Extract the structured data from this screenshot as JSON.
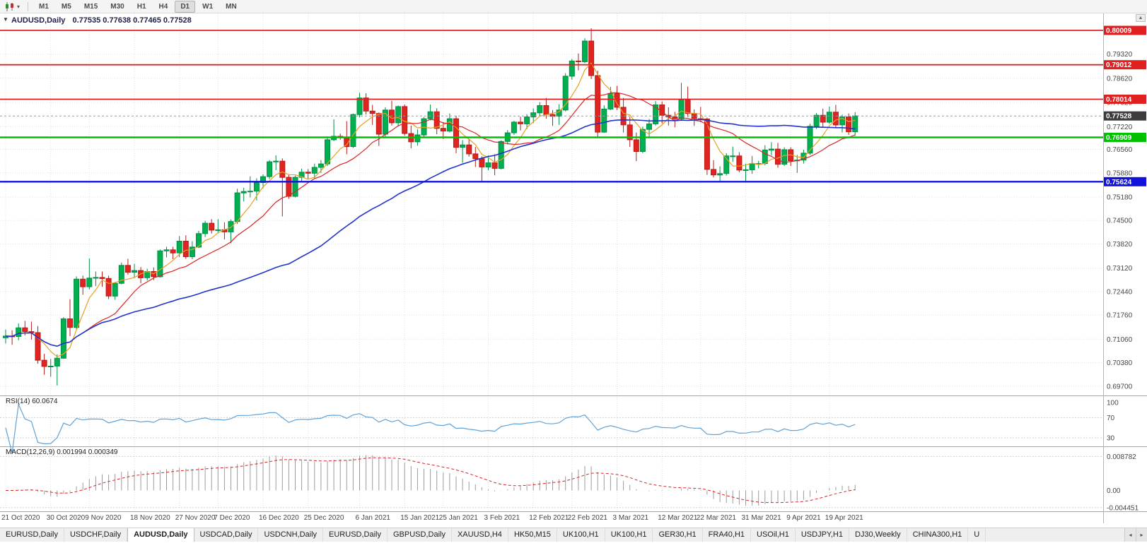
{
  "toolbar": {
    "timeframes": [
      "M1",
      "M5",
      "M15",
      "M30",
      "H1",
      "H4",
      "D1",
      "W1",
      "MN"
    ],
    "active": "D1"
  },
  "icons": {
    "one_click": "▼",
    "chevron_down": "▾",
    "scroll_up": "▲",
    "arrow_left": "◂",
    "arrow_right": "▸"
  },
  "chart": {
    "title": {
      "symbol": "AUDUSD,Daily",
      "ohlc": "0.77535 0.77638 0.77465 0.77528"
    },
    "colors": {
      "up": "#00b050",
      "up_stroke": "#008f43",
      "down": "#e0241f",
      "down_stroke": "#b51d19",
      "grid": "#e0e0e0",
      "axis_text": "#464646",
      "separator": "#a6a6a6",
      "axis_border": "#b4b4b4",
      "rsi_line": "#5fa2d8",
      "macd_hist": "#9b9b9b",
      "macd_signal": "#dc2020",
      "current_line": "#9a9a9a"
    }
  },
  "rsi": {
    "title": "RSI(14) 60.0674",
    "period": 14,
    "current": 60.0674,
    "axis_labels": [
      100,
      70,
      30
    ]
  },
  "macd": {
    "title": "MACD(12,26,9) 0.001994 0.000349",
    "fast": 12,
    "slow": 26,
    "signal": 9,
    "macd_value": 0.001994,
    "signal_value": 0.000349,
    "axis_labels": [
      "0.008782",
      "0.00",
      "-0.004451"
    ],
    "level_values": [
      0.008782,
      -0.004451
    ]
  },
  "tabs": {
    "items": [
      "EURUSD,Daily",
      "USDCHF,Daily",
      "AUDUSD,Daily",
      "USDCAD,Daily",
      "USDCNH,Daily",
      "EURUSD,Daily",
      "GBPUSD,Daily",
      "XAUUSD,H4",
      "HK50,M15",
      "UK100,H1",
      "UK100,H1",
      "GER30,H1",
      "FRA40,H1",
      "USOil,H1",
      "USDJPY,H1",
      "DJ30,Weekly",
      "CHINA300,H1",
      "U"
    ],
    "active_index": 2
  },
  "chart_data": {
    "type": "candlestick",
    "symbol": "AUDUSD",
    "period": "Daily",
    "ohlc_display": {
      "open": 0.77535,
      "high": 0.77638,
      "low": 0.77465,
      "close": 0.77528
    },
    "current_price": {
      "price": 0.77528,
      "label": "0.77528",
      "color": "#3c3c3c"
    },
    "y_axis_ticks": [
      0.7932,
      0.7862,
      0.7792,
      0.7722,
      0.7656,
      0.7588,
      0.7518,
      0.745,
      0.7382,
      0.7312,
      0.7244,
      0.7176,
      0.7106,
      0.7038,
      0.697
    ],
    "x_axis_labels": [
      {
        "label": "21 Oct 2020",
        "bar": 0
      },
      {
        "label": "30 Oct 2020",
        "bar": 7
      },
      {
        "label": "9 Nov 2020",
        "bar": 13
      },
      {
        "label": "18 Nov 2020",
        "bar": 20
      },
      {
        "label": "27 Nov 2020",
        "bar": 27
      },
      {
        "label": "7 Dec 2020",
        "bar": 33
      },
      {
        "label": "16 Dec 2020",
        "bar": 40
      },
      {
        "label": "25 Dec 2020",
        "bar": 47
      },
      {
        "label": "6 Jan 2021",
        "bar": 55
      },
      {
        "label": "15 Jan 2021",
        "bar": 62
      },
      {
        "label": "25 Jan 2021",
        "bar": 68
      },
      {
        "label": "3 Feb 2021",
        "bar": 75
      },
      {
        "label": "12 Feb 2021",
        "bar": 82
      },
      {
        "label": "22 Feb 2021",
        "bar": 88
      },
      {
        "label": "3 Mar 2021",
        "bar": 95
      },
      {
        "label": "12 Mar 2021",
        "bar": 102
      },
      {
        "label": "22 Mar 2021",
        "bar": 108
      },
      {
        "label": "31 Mar 2021",
        "bar": 115
      },
      {
        "label": "9 Apr 2021",
        "bar": 122
      },
      {
        "label": "19 Apr 2021",
        "bar": 128
      }
    ],
    "horizontal_levels": [
      {
        "price": 0.80009,
        "label": "0.80009",
        "color": "#e02020",
        "width": 1.8,
        "kind": "resistance"
      },
      {
        "price": 0.79012,
        "label": "0.79012",
        "color": "#e02020",
        "width": 1.8,
        "kind": "resistance"
      },
      {
        "price": 0.78014,
        "label": "0.78014",
        "color": "#e02020",
        "width": 1.8,
        "kind": "resistance"
      },
      {
        "price": 0.76909,
        "label": "0.76909",
        "color": "#00c000",
        "width": 2.4,
        "kind": "support"
      },
      {
        "price": 0.75624,
        "label": "0.75624",
        "color": "#1212dd",
        "width": 2.4,
        "kind": "support"
      }
    ],
    "moving_averages": [
      {
        "period": 5,
        "color": "#e8a020",
        "name": "ma-fast"
      },
      {
        "period": 13,
        "color": "#dd2222",
        "name": "ma-mid"
      },
      {
        "period": 45,
        "color": "#2233cc",
        "name": "ma-slow"
      }
    ],
    "candles": [
      [
        0.711,
        0.7134,
        0.7094,
        0.7115
      ],
      [
        0.7115,
        0.7132,
        0.709,
        0.7114
      ],
      [
        0.7114,
        0.7152,
        0.7103,
        0.7139
      ],
      [
        0.7139,
        0.7159,
        0.7117,
        0.7128
      ],
      [
        0.7128,
        0.7157,
        0.7105,
        0.7125
      ],
      [
        0.7125,
        0.7144,
        0.7035,
        0.7045
      ],
      [
        0.7045,
        0.7064,
        0.7003,
        0.7027
      ],
      [
        0.7027,
        0.7049,
        0.6997,
        0.7028
      ],
      [
        0.7028,
        0.7062,
        0.6972,
        0.7051
      ],
      [
        0.7051,
        0.717,
        0.7049,
        0.7165
      ],
      [
        0.7165,
        0.7222,
        0.7115,
        0.714
      ],
      [
        0.714,
        0.7288,
        0.7135,
        0.728
      ],
      [
        0.728,
        0.729,
        0.7235,
        0.7258
      ],
      [
        0.7258,
        0.734,
        0.725,
        0.7283
      ],
      [
        0.7283,
        0.7302,
        0.726,
        0.7285
      ],
      [
        0.7285,
        0.7302,
        0.7258,
        0.7282
      ],
      [
        0.7282,
        0.729,
        0.7222,
        0.7231
      ],
      [
        0.7231,
        0.7272,
        0.722,
        0.7268
      ],
      [
        0.7268,
        0.7328,
        0.7265,
        0.732
      ],
      [
        0.732,
        0.7339,
        0.7293,
        0.73
      ],
      [
        0.73,
        0.7324,
        0.7283,
        0.7305
      ],
      [
        0.7305,
        0.7315,
        0.7268,
        0.7284
      ],
      [
        0.7284,
        0.731,
        0.7276,
        0.7302
      ],
      [
        0.7302,
        0.7314,
        0.7277,
        0.7287
      ],
      [
        0.7287,
        0.7366,
        0.7285,
        0.7362
      ],
      [
        0.7362,
        0.7374,
        0.7343,
        0.7365
      ],
      [
        0.7365,
        0.7374,
        0.7338,
        0.7356
      ],
      [
        0.7356,
        0.7405,
        0.7344,
        0.739
      ],
      [
        0.739,
        0.7407,
        0.7339,
        0.7345
      ],
      [
        0.7345,
        0.739,
        0.7338,
        0.7373
      ],
      [
        0.7373,
        0.742,
        0.737,
        0.7412
      ],
      [
        0.7412,
        0.7449,
        0.7402,
        0.7442
      ],
      [
        0.7442,
        0.7454,
        0.7412,
        0.7422
      ],
      [
        0.7422,
        0.7454,
        0.7413,
        0.7423
      ],
      [
        0.7423,
        0.7445,
        0.7395,
        0.7417
      ],
      [
        0.7417,
        0.7453,
        0.7384,
        0.7447
      ],
      [
        0.7447,
        0.7542,
        0.744,
        0.753
      ],
      [
        0.753,
        0.7545,
        0.7505,
        0.7534
      ],
      [
        0.7534,
        0.7578,
        0.7517,
        0.7535
      ],
      [
        0.7535,
        0.7572,
        0.7508,
        0.756
      ],
      [
        0.756,
        0.7584,
        0.7543,
        0.7577
      ],
      [
        0.7577,
        0.7625,
        0.757,
        0.762
      ],
      [
        0.762,
        0.7639,
        0.7596,
        0.7622
      ],
      [
        0.7622,
        0.763,
        0.7462,
        0.7575
      ],
      [
        0.7575,
        0.7583,
        0.7513,
        0.752
      ],
      [
        0.752,
        0.758,
        0.7517,
        0.7575
      ],
      [
        0.7575,
        0.76,
        0.756,
        0.759
      ],
      [
        0.759,
        0.7599,
        0.757,
        0.7587
      ],
      [
        0.7587,
        0.7615,
        0.7572,
        0.7604
      ],
      [
        0.7604,
        0.7625,
        0.7588,
        0.7614
      ],
      [
        0.7614,
        0.769,
        0.7608,
        0.7684
      ],
      [
        0.7684,
        0.7743,
        0.768,
        0.7694
      ],
      [
        0.7694,
        0.7702,
        0.7684,
        0.7692
      ],
      [
        0.7692,
        0.7738,
        0.7642,
        0.7664
      ],
      [
        0.7664,
        0.776,
        0.766,
        0.7757
      ],
      [
        0.7757,
        0.782,
        0.7749,
        0.7805
      ],
      [
        0.7805,
        0.7819,
        0.7757,
        0.7767
      ],
      [
        0.7767,
        0.7785,
        0.7727,
        0.776
      ],
      [
        0.776,
        0.7763,
        0.7666,
        0.77
      ],
      [
        0.77,
        0.7778,
        0.7692,
        0.777
      ],
      [
        0.777,
        0.7797,
        0.7725,
        0.7733
      ],
      [
        0.7733,
        0.7783,
        0.7723,
        0.778
      ],
      [
        0.778,
        0.7786,
        0.7696,
        0.7702
      ],
      [
        0.7702,
        0.7725,
        0.7659,
        0.7678
      ],
      [
        0.7678,
        0.7714,
        0.7667,
        0.7698
      ],
      [
        0.7698,
        0.775,
        0.769,
        0.7745
      ],
      [
        0.7745,
        0.7786,
        0.774,
        0.7765
      ],
      [
        0.7765,
        0.7775,
        0.77,
        0.7717
      ],
      [
        0.7717,
        0.7735,
        0.7686,
        0.7709
      ],
      [
        0.7709,
        0.776,
        0.7705,
        0.7745
      ],
      [
        0.7745,
        0.7754,
        0.7645,
        0.7662
      ],
      [
        0.7662,
        0.7683,
        0.7617,
        0.7669
      ],
      [
        0.7669,
        0.7686,
        0.7635,
        0.7643
      ],
      [
        0.7643,
        0.7663,
        0.7605,
        0.7629
      ],
      [
        0.7629,
        0.7636,
        0.7563,
        0.7605
      ],
      [
        0.7605,
        0.7639,
        0.7596,
        0.7617
      ],
      [
        0.7617,
        0.7642,
        0.7581,
        0.7601
      ],
      [
        0.7601,
        0.7682,
        0.7598,
        0.7679
      ],
      [
        0.7679,
        0.7712,
        0.767,
        0.7704
      ],
      [
        0.7704,
        0.7739,
        0.7698,
        0.7735
      ],
      [
        0.7735,
        0.7751,
        0.7711,
        0.773
      ],
      [
        0.773,
        0.7758,
        0.7715,
        0.775
      ],
      [
        0.775,
        0.7775,
        0.7732,
        0.7762
      ],
      [
        0.7762,
        0.7793,
        0.7752,
        0.7783
      ],
      [
        0.7783,
        0.7805,
        0.7745,
        0.7757
      ],
      [
        0.7757,
        0.777,
        0.7724,
        0.7752
      ],
      [
        0.7752,
        0.7787,
        0.7727,
        0.777
      ],
      [
        0.777,
        0.7877,
        0.7766,
        0.7868
      ],
      [
        0.7868,
        0.7918,
        0.7858,
        0.7912
      ],
      [
        0.7912,
        0.7934,
        0.7885,
        0.791
      ],
      [
        0.791,
        0.7978,
        0.7906,
        0.797
      ],
      [
        0.797,
        0.8007,
        0.786,
        0.787
      ],
      [
        0.787,
        0.7884,
        0.7692,
        0.7706
      ],
      [
        0.7706,
        0.7784,
        0.7704,
        0.7773
      ],
      [
        0.7773,
        0.7837,
        0.777,
        0.7818
      ],
      [
        0.7818,
        0.784,
        0.777,
        0.7778
      ],
      [
        0.7778,
        0.7805,
        0.7705,
        0.7727
      ],
      [
        0.7727,
        0.775,
        0.7663,
        0.7684
      ],
      [
        0.7684,
        0.7705,
        0.7622,
        0.765
      ],
      [
        0.765,
        0.7722,
        0.7645,
        0.7714
      ],
      [
        0.7714,
        0.7744,
        0.7693,
        0.773
      ],
      [
        0.773,
        0.7796,
        0.7725,
        0.7785
      ],
      [
        0.7785,
        0.7795,
        0.7731,
        0.7755
      ],
      [
        0.7755,
        0.7778,
        0.7725,
        0.775
      ],
      [
        0.775,
        0.7765,
        0.772,
        0.7745
      ],
      [
        0.7745,
        0.7849,
        0.774,
        0.78
      ],
      [
        0.78,
        0.7838,
        0.775,
        0.776
      ],
      [
        0.776,
        0.7772,
        0.7724,
        0.7745
      ],
      [
        0.7745,
        0.7779,
        0.7735,
        0.7744
      ],
      [
        0.7744,
        0.7748,
        0.7582,
        0.7598
      ],
      [
        0.7598,
        0.7625,
        0.7575,
        0.7582
      ],
      [
        0.7582,
        0.7607,
        0.7562,
        0.7586
      ],
      [
        0.7586,
        0.7645,
        0.758,
        0.7637
      ],
      [
        0.7637,
        0.7664,
        0.762,
        0.7637
      ],
      [
        0.7637,
        0.7648,
        0.759,
        0.7596
      ],
      [
        0.7596,
        0.7615,
        0.756,
        0.7597
      ],
      [
        0.7597,
        0.7637,
        0.7585,
        0.7615
      ],
      [
        0.7615,
        0.7623,
        0.7601,
        0.7615
      ],
      [
        0.7615,
        0.7668,
        0.761,
        0.7654
      ],
      [
        0.7654,
        0.7677,
        0.7638,
        0.7657
      ],
      [
        0.7657,
        0.7675,
        0.7603,
        0.7613
      ],
      [
        0.7613,
        0.7662,
        0.7608,
        0.7655
      ],
      [
        0.7655,
        0.7662,
        0.7608,
        0.7623
      ],
      [
        0.7623,
        0.764,
        0.7588,
        0.7625
      ],
      [
        0.7625,
        0.7655,
        0.7615,
        0.7645
      ],
      [
        0.7645,
        0.773,
        0.764,
        0.7723
      ],
      [
        0.7723,
        0.7761,
        0.7715,
        0.7755
      ],
      [
        0.7755,
        0.7774,
        0.7721,
        0.7735
      ],
      [
        0.7735,
        0.778,
        0.773,
        0.7764
      ],
      [
        0.7764,
        0.7785,
        0.772,
        0.7727
      ],
      [
        0.7727,
        0.7757,
        0.7705,
        0.775
      ],
      [
        0.775,
        0.776,
        0.7698,
        0.7707
      ],
      [
        0.7707,
        0.7764,
        0.7695,
        0.7753
      ]
    ]
  }
}
